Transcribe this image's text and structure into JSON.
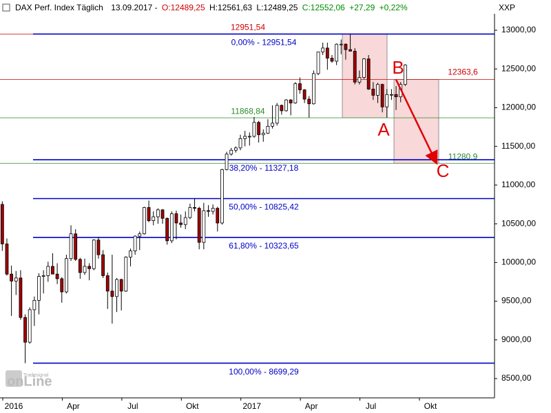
{
  "header": {
    "name": "DAX Perf. Index Täglich",
    "date": "13.09.2017 -",
    "open": "O:12489,25",
    "high": "H:12561,63",
    "low": "L:12489,25",
    "close": "C:12552,06",
    "change": "+27,29",
    "change_pct": "+0,22%",
    "currency": "XXP"
  },
  "watermark": {
    "brand": "Tradesignal",
    "product": "onLine"
  },
  "chart_data": {
    "type": "candlestick",
    "categories": [
      "2016",
      null,
      null,
      null,
      null,
      null,
      null,
      null,
      null,
      null,
      null,
      null,
      null,
      "Apr",
      null,
      null,
      null,
      null,
      null,
      null,
      null,
      null,
      null,
      null,
      null,
      null,
      "Jul",
      null,
      null,
      null,
      null,
      null,
      null,
      null,
      null,
      null,
      null,
      null,
      null,
      "Okt",
      null,
      null,
      null,
      null,
      null,
      null,
      null,
      null,
      null,
      null,
      null,
      null,
      "2017",
      null,
      null,
      null,
      null,
      null,
      null,
      null,
      null,
      null,
      null,
      null,
      null,
      "Apr",
      null,
      null,
      null,
      null,
      null,
      null,
      null,
      null,
      null,
      null,
      null,
      null,
      "Jul",
      null,
      null,
      null,
      null,
      null,
      null,
      null,
      null,
      null,
      null,
      null,
      null,
      "Okt",
      null,
      null,
      null,
      null,
      null,
      null,
      null,
      null,
      null,
      null,
      null,
      null,
      null,
      null,
      null,
      null
    ],
    "ohlc": [
      [
        10750,
        10790,
        10150,
        10240
      ],
      [
        10240,
        10310,
        9830,
        9850
      ],
      [
        9850,
        9960,
        9310,
        9760
      ],
      [
        9760,
        9890,
        9580,
        9800
      ],
      [
        9800,
        9900,
        9260,
        9290
      ],
      [
        9290,
        9330,
        8699,
        8970
      ],
      [
        8970,
        9420,
        8950,
        9390
      ],
      [
        9390,
        9560,
        9180,
        9510
      ],
      [
        9510,
        9860,
        9330,
        9820
      ],
      [
        9820,
        9900,
        9600,
        9830
      ],
      [
        9830,
        10010,
        9750,
        9950
      ],
      [
        9950,
        10120,
        9850,
        9850
      ],
      [
        9850,
        9990,
        9720,
        9790
      ],
      [
        9790,
        9810,
        9480,
        9620
      ],
      [
        9620,
        10100,
        9600,
        10050
      ],
      [
        10050,
        10480,
        10020,
        10370
      ],
      [
        10370,
        10430,
        10020,
        10040
      ],
      [
        10040,
        10060,
        9790,
        9870
      ],
      [
        9870,
        10050,
        9840,
        9950
      ],
      [
        9950,
        9990,
        9770,
        9920
      ],
      [
        9920,
        10300,
        9900,
        10290
      ],
      [
        10290,
        10330,
        10050,
        10100
      ],
      [
        10100,
        10160,
        9800,
        9830
      ],
      [
        9830,
        9870,
        9400,
        9630
      ],
      [
        9630,
        10100,
        9210,
        9560
      ],
      [
        9560,
        9800,
        9360,
        9780
      ],
      [
        9780,
        9790,
        9380,
        9630
      ],
      [
        9630,
        10080,
        9620,
        10070
      ],
      [
        10070,
        10180,
        9950,
        10150
      ],
      [
        10150,
        10350,
        10100,
        10340
      ],
      [
        10340,
        10400,
        10160,
        10370
      ],
      [
        10370,
        10720,
        10360,
        10710
      ],
      [
        10710,
        10800,
        10520,
        10540
      ],
      [
        10540,
        10660,
        10480,
        10590
      ],
      [
        10590,
        10700,
        10500,
        10680
      ],
      [
        10680,
        10690,
        10500,
        10570
      ],
      [
        10570,
        10580,
        10230,
        10280
      ],
      [
        10280,
        10660,
        10250,
        10630
      ],
      [
        10630,
        10670,
        10300,
        10510
      ],
      [
        10510,
        10620,
        10450,
        10490
      ],
      [
        10490,
        10660,
        10430,
        10580
      ],
      [
        10580,
        10760,
        10560,
        10710
      ],
      [
        10710,
        10830,
        10660,
        10700
      ],
      [
        10700,
        10720,
        10170,
        10260
      ],
      [
        10260,
        10770,
        10170,
        10670
      ],
      [
        10670,
        10740,
        10590,
        10660
      ],
      [
        10660,
        10750,
        10620,
        10700
      ],
      [
        10700,
        10720,
        10400,
        10510
      ],
      [
        10510,
        11210,
        10490,
        11200
      ],
      [
        11200,
        11430,
        11190,
        11400
      ],
      [
        11400,
        11480,
        11380,
        11450
      ],
      [
        11450,
        11500,
        11420,
        11480
      ],
      [
        11480,
        11650,
        11450,
        11600
      ],
      [
        11600,
        11700,
        11500,
        11630
      ],
      [
        11630,
        11680,
        11510,
        11630
      ],
      [
        11630,
        11880,
        11610,
        11810
      ],
      [
        11810,
        11830,
        11550,
        11650
      ],
      [
        11650,
        11720,
        11560,
        11670
      ],
      [
        11670,
        11850,
        11660,
        11760
      ],
      [
        11760,
        12030,
        11730,
        11800
      ],
      [
        11800,
        12060,
        11770,
        12030
      ],
      [
        12030,
        12040,
        11910,
        11960
      ],
      [
        11960,
        12110,
        11950,
        12100
      ],
      [
        12100,
        12110,
        11900,
        12060
      ],
      [
        12060,
        12330,
        12050,
        12310
      ],
      [
        12310,
        12390,
        12180,
        12230
      ],
      [
        12230,
        12240,
        12060,
        12110
      ],
      [
        12110,
        12150,
        11870,
        12050
      ],
      [
        12050,
        12480,
        12040,
        12440
      ],
      [
        12440,
        12720,
        12420,
        12720
      ],
      [
        12720,
        12840,
        12680,
        12770
      ],
      [
        12770,
        12840,
        12490,
        12640
      ],
      [
        12640,
        12680,
        12580,
        12600
      ],
      [
        12600,
        12830,
        12550,
        12820
      ],
      [
        12820,
        12880,
        12690,
        12820
      ],
      [
        12820,
        12830,
        12620,
        12750
      ],
      [
        12750,
        12951.54,
        12730,
        12730
      ],
      [
        12730,
        12770,
        12300,
        12330
      ],
      [
        12330,
        12480,
        12300,
        12390
      ],
      [
        12390,
        12640,
        12370,
        12630
      ],
      [
        12630,
        12680,
        12230,
        12240
      ],
      [
        12240,
        12330,
        12100,
        12160
      ],
      [
        12160,
        12320,
        12060,
        12300
      ],
      [
        12300,
        12310,
        11940,
        12010
      ],
      [
        12010,
        12240,
        11870,
        12170
      ],
      [
        12170,
        12240,
        12100,
        12170
      ],
      [
        12170,
        12280,
        11970,
        12140
      ],
      [
        12140,
        12330,
        12070,
        12300
      ],
      [
        12300,
        12561.63,
        12280,
        12552.06
      ],
      null,
      null,
      null,
      null,
      null,
      null,
      null,
      null,
      null,
      null,
      null,
      null,
      null,
      null,
      null,
      null,
      null,
      null,
      null
    ],
    "up_color": "#ffffff",
    "down_color": "#a00000",
    "ylim": [
      8251,
      13213
    ],
    "yticks": [
      {
        "value": 8500,
        "label": "8500,00"
      },
      {
        "value": 9000,
        "label": "9000,00"
      },
      {
        "value": 9500,
        "label": "9500,00"
      },
      {
        "value": 10000,
        "label": "10000,00"
      },
      {
        "value": 10500,
        "label": "10500,00"
      },
      {
        "value": 11000,
        "label": "11000,00"
      },
      {
        "value": 11500,
        "label": "11500,00"
      },
      {
        "value": 12000,
        "label": "12000,00"
      },
      {
        "value": 12500,
        "label": "12500,00"
      },
      {
        "value": 13000,
        "label": "13000,00"
      }
    ],
    "fib_levels": [
      {
        "value": 12951.54,
        "label": "0,00% - 12951,54"
      },
      {
        "value": 11327.18,
        "label": "38,20% - 11327,18"
      },
      {
        "value": 10825.42,
        "label": "50,00% - 10825,42"
      },
      {
        "value": 10323.65,
        "label": "61,80% - 10323,65"
      },
      {
        "value": 8699.29,
        "label": "100,00% - 8699,29"
      }
    ],
    "fib_color": "#0000c8",
    "price_levels": [
      {
        "value": 12951.54,
        "label": "12951,54",
        "color": "#d00000"
      },
      {
        "value": 12363.6,
        "label": "12363,6",
        "color": "#d00000"
      },
      {
        "value": 11868.84,
        "label": "11868,84",
        "color": "#2a8a2a"
      },
      {
        "value": 11280.9,
        "label": "11280,9",
        "color": "#2a8a2a"
      }
    ],
    "waves": [
      "A",
      "B",
      "C"
    ],
    "wave_color": "#e00000",
    "box_color": "#f8d8d8"
  }
}
